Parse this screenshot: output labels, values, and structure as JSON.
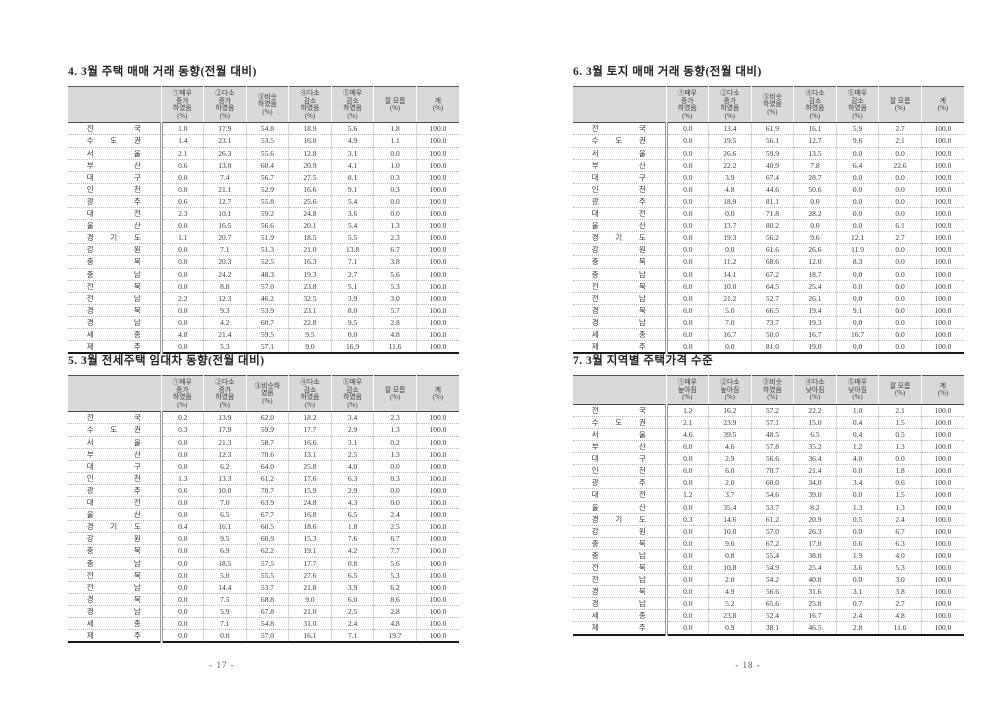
{
  "style": {
    "header_bg": "#d9d9d9",
    "paper": "#ffffff"
  },
  "document": {
    "pages": [
      {
        "number_label": "- 17 -"
      },
      {
        "number_label": "- 18 -"
      }
    ]
  },
  "regions": [
    "전 국",
    "수 도 권",
    "서 울",
    "부 산",
    "대 구",
    "인 천",
    "광 주",
    "대 전",
    "울 산",
    "경 기 도",
    "강 원",
    "충 북",
    "충 남",
    "전 북",
    "전 남",
    "경 북",
    "경 남",
    "세 종",
    "제 주"
  ],
  "tables": {
    "housing_sales": {
      "title": "4. 3월 주택 매매 거래 동향(전월 대비)",
      "col_headers": [
        [
          "①매우",
          "증가",
          "하였음",
          "(%)"
        ],
        [
          "②다소",
          "증가",
          "하였음",
          "(%)"
        ],
        [
          "③비슷",
          "하였음",
          "(%)"
        ],
        [
          "④다소",
          "감소",
          "하였음",
          "(%)"
        ],
        [
          "⑤매우",
          "감소",
          "하였음",
          "(%)"
        ],
        [
          "잘 모름",
          "(%)"
        ],
        [
          "계",
          "(%)"
        ]
      ],
      "rows": [
        [
          "1.0",
          "17.9",
          "54.8",
          "18.9",
          "5.6",
          "1.8",
          "100.0"
        ],
        [
          "1.4",
          "23.1",
          "53.5",
          "16.0",
          "4.9",
          "1.1",
          "100.0"
        ],
        [
          "2.1",
          "26.3",
          "55.6",
          "12.8",
          "3.1",
          "0.0",
          "100.0"
        ],
        [
          "0.6",
          "13.0",
          "60.4",
          "20.9",
          "4.1",
          "1.0",
          "100.0"
        ],
        [
          "0.0",
          "7.4",
          "56.7",
          "27.5",
          "8.1",
          "0.3",
          "100.0"
        ],
        [
          "0.0",
          "21.1",
          "52.9",
          "16.6",
          "9.1",
          "0.3",
          "100.0"
        ],
        [
          "0.6",
          "12.7",
          "55.8",
          "25.6",
          "5.4",
          "0.0",
          "100.0"
        ],
        [
          "2.3",
          "10.1",
          "59.2",
          "24.8",
          "3.6",
          "0.0",
          "100.0"
        ],
        [
          "0.0",
          "16.5",
          "56.6",
          "20.1",
          "5.4",
          "1.3",
          "100.0"
        ],
        [
          "1.1",
          "20.7",
          "51.9",
          "18.5",
          "5.5",
          "2.3",
          "100.0"
        ],
        [
          "0.0",
          "7.1",
          "51.3",
          "21.0",
          "13.8",
          "6.7",
          "100.0"
        ],
        [
          "0.0",
          "20.3",
          "52.5",
          "16.3",
          "7.1",
          "3.8",
          "100.0"
        ],
        [
          "0.0",
          "24.2",
          "48.3",
          "19.3",
          "2.7",
          "5.6",
          "100.0"
        ],
        [
          "0.0",
          "8.8",
          "57.0",
          "23.8",
          "5.1",
          "5.3",
          "100.0"
        ],
        [
          "2.2",
          "12.3",
          "46.2",
          "32.5",
          "3.9",
          "3.0",
          "100.0"
        ],
        [
          "0.0",
          "9.3",
          "53.9",
          "23.1",
          "8.0",
          "5.7",
          "100.0"
        ],
        [
          "0.0",
          "4.2",
          "60.7",
          "22.8",
          "9.5",
          "2.8",
          "100.0"
        ],
        [
          "4.8",
          "21.4",
          "59.5",
          "9.5",
          "0.0",
          "4.8",
          "100.0"
        ],
        [
          "0.0",
          "5.3",
          "57.1",
          "9.0",
          "16.9",
          "11.6",
          "100.0"
        ]
      ]
    },
    "jeonse_rental": {
      "title": "5. 3월 전세주택 임대차 동향(전월 대비)",
      "col_headers": [
        [
          "①매우",
          "증가",
          "하였음",
          "(%)"
        ],
        [
          "②다소",
          "증가",
          "하였음",
          "(%)"
        ],
        [
          "③비슷하",
          "였음",
          "(%)"
        ],
        [
          "④다소",
          "감소",
          "하였음",
          "(%)"
        ],
        [
          "⑤매우",
          "감소",
          "하였음",
          "(%)"
        ],
        [
          "잘 모름",
          "(%)"
        ],
        [
          "계",
          "(%)"
        ]
      ],
      "rows": [
        [
          "0.2",
          "13.9",
          "62.0",
          "18.2",
          "3.4",
          "2.3",
          "100.0"
        ],
        [
          "0.3",
          "17.9",
          "59.9",
          "17.7",
          "2.9",
          "1.3",
          "100.0"
        ],
        [
          "0.0",
          "21.3",
          "58.7",
          "16.6",
          "3.1",
          "0.2",
          "100.0"
        ],
        [
          "0.0",
          "12.3",
          "70.6",
          "13.1",
          "2.5",
          "1.3",
          "100.0"
        ],
        [
          "0.0",
          "6.2",
          "64.0",
          "25.8",
          "4.0",
          "0.0",
          "100.0"
        ],
        [
          "1.3",
          "13.3",
          "61.2",
          "17.6",
          "6.3",
          "0.3",
          "100.0"
        ],
        [
          "0.6",
          "10.0",
          "70.7",
          "15.9",
          "2.9",
          "0.0",
          "100.0"
        ],
        [
          "0.0",
          "7.0",
          "63.9",
          "24.8",
          "4.3",
          "0.0",
          "100.0"
        ],
        [
          "0.0",
          "6.5",
          "67.7",
          "16.8",
          "6.5",
          "2.4",
          "100.0"
        ],
        [
          "0.4",
          "16.1",
          "60.5",
          "18.6",
          "1.8",
          "2.5",
          "100.0"
        ],
        [
          "0.0",
          "9.5",
          "60.9",
          "15.3",
          "7.6",
          "6.7",
          "100.0"
        ],
        [
          "0.0",
          "6.9",
          "62.2",
          "19.1",
          "4.2",
          "7.7",
          "100.0"
        ],
        [
          "0.0",
          "18.5",
          "57.5",
          "17.7",
          "0.8",
          "5.6",
          "100.0"
        ],
        [
          "0.0",
          "5.0",
          "55.5",
          "27.6",
          "6.5",
          "5.3",
          "100.0"
        ],
        [
          "0.0",
          "14.4",
          "53.7",
          "21.8",
          "3.9",
          "6.2",
          "100.0"
        ],
        [
          "0.0",
          "7.5",
          "68.8",
          "9.0",
          "6.0",
          "8.6",
          "100.0"
        ],
        [
          "0.0",
          "5.9",
          "67.8",
          "21.0",
          "2.5",
          "2.8",
          "100.0"
        ],
        [
          "0.0",
          "7.1",
          "54.8",
          "31.0",
          "2.4",
          "4.8",
          "100.0"
        ],
        [
          "0.0",
          "0.0",
          "57.0",
          "16.1",
          "7.1",
          "19.7",
          "100.0"
        ]
      ]
    },
    "land_sales": {
      "title": "6. 3월 토지 매매 거래 동향(전월 대비)",
      "col_headers": [
        [
          "①매우",
          "증가",
          "하였음",
          "(%)"
        ],
        [
          "②다소",
          "증가",
          "하였음",
          "(%)"
        ],
        [
          "③비슷",
          "하였음",
          "(%)"
        ],
        [
          "④다소",
          "감소",
          "하였음",
          "(%)"
        ],
        [
          "⑤매우",
          "감소",
          "하였음",
          "(%)"
        ],
        [
          "잘 모름",
          "(%)"
        ],
        [
          "계",
          "(%)"
        ]
      ],
      "rows": [
        [
          "0.0",
          "13.4",
          "61.9",
          "16.1",
          "5.9",
          "2.7",
          "100.0"
        ],
        [
          "0.0",
          "19.5",
          "56.1",
          "12.7",
          "9.6",
          "2.1",
          "100.0"
        ],
        [
          "0.0",
          "26.6",
          "59.9",
          "13.5",
          "0.0",
          "0.0",
          "100.0"
        ],
        [
          "0.0",
          "22.2",
          "40.9",
          "7.8",
          "6.4",
          "22.6",
          "100.0"
        ],
        [
          "0.0",
          "3.9",
          "67.4",
          "28.7",
          "0.0",
          "0.0",
          "100.0"
        ],
        [
          "0.0",
          "4.8",
          "44.6",
          "50.6",
          "0.0",
          "0.0",
          "100.0"
        ],
        [
          "0.0",
          "18.9",
          "81.1",
          "0.0",
          "0.0",
          "0.0",
          "100.0"
        ],
        [
          "0.0",
          "0.0",
          "71.8",
          "28.2",
          "0.0",
          "0.0",
          "100.0"
        ],
        [
          "0.0",
          "13.7",
          "80.2",
          "0.0",
          "0.0",
          "6.1",
          "100.0"
        ],
        [
          "0.0",
          "19.3",
          "56.2",
          "9.6",
          "12.1",
          "2.7",
          "100.0"
        ],
        [
          "0.0",
          "0.0",
          "61.6",
          "26.6",
          "11.9",
          "0.0",
          "100.0"
        ],
        [
          "0.0",
          "11.2",
          "68.6",
          "12.0",
          "8.3",
          "0.0",
          "100.0"
        ],
        [
          "0.0",
          "14.1",
          "67.2",
          "18.7",
          "0.0",
          "0.0",
          "100.0"
        ],
        [
          "0.0",
          "10.0",
          "64.5",
          "25.4",
          "0.0",
          "0.0",
          "100.0"
        ],
        [
          "0.0",
          "21.2",
          "52.7",
          "26.1",
          "0.0",
          "0.0",
          "100.0"
        ],
        [
          "0.0",
          "5.0",
          "66.5",
          "19.4",
          "9.1",
          "0.0",
          "100.0"
        ],
        [
          "0.0",
          "7.0",
          "73.7",
          "19.3",
          "0.0",
          "0.0",
          "100.0"
        ],
        [
          "0.0",
          "16.7",
          "50.0",
          "16.7",
          "16.7",
          "0.0",
          "100.0"
        ],
        [
          "0.0",
          "0.0",
          "81.0",
          "19.0",
          "0.0",
          "0.0",
          "100.0"
        ]
      ]
    },
    "price_level": {
      "title": "7. 3월 지역별 주택가격 수준",
      "col_headers": [
        [
          "①매우",
          "높아짐",
          "(%)"
        ],
        [
          "②다소",
          "높아짐",
          "(%)"
        ],
        [
          "③비슷",
          "하였음",
          "(%)"
        ],
        [
          "④다소",
          "낮아짐",
          "(%)"
        ],
        [
          "⑤매우",
          "낮아짐",
          "(%)"
        ],
        [
          "잘 모름",
          "(%)"
        ],
        [
          "계",
          "(%)"
        ]
      ],
      "rows": [
        [
          "1.2",
          "16.2",
          "57.2",
          "22.2",
          "1.0",
          "2.1",
          "100.0"
        ],
        [
          "2.1",
          "23.9",
          "57.1",
          "15.0",
          "0.4",
          "1.5",
          "100.0"
        ],
        [
          "4.6",
          "39.5",
          "48.5",
          "6.5",
          "0.4",
          "0.5",
          "100.0"
        ],
        [
          "0.0",
          "4.6",
          "57.8",
          "35.2",
          "1.2",
          "1.3",
          "100.0"
        ],
        [
          "0.0",
          "2.9",
          "56.6",
          "36.4",
          "4.0",
          "0.0",
          "100.0"
        ],
        [
          "0.0",
          "6.0",
          "70.7",
          "21.4",
          "0.0",
          "1.8",
          "100.0"
        ],
        [
          "0.0",
          "2.0",
          "60.0",
          "34.0",
          "3.4",
          "0.6",
          "100.0"
        ],
        [
          "1.2",
          "3.7",
          "54.6",
          "39.0",
          "0.0",
          "1.5",
          "100.0"
        ],
        [
          "0.0",
          "35.4",
          "53.7",
          "8.2",
          "1.3",
          "1.3",
          "100.0"
        ],
        [
          "0.3",
          "14.6",
          "61.2",
          "20.9",
          "0.5",
          "2.4",
          "100.0"
        ],
        [
          "0.0",
          "10.0",
          "57.0",
          "26.3",
          "0.0",
          "6.7",
          "100.0"
        ],
        [
          "0.0",
          "9.0",
          "67.2",
          "17.0",
          "0.6",
          "6.3",
          "100.0"
        ],
        [
          "0.0",
          "0.8",
          "55.4",
          "38.0",
          "1.9",
          "4.0",
          "100.0"
        ],
        [
          "0.0",
          "10.8",
          "54.9",
          "25.4",
          "3.6",
          "5.3",
          "100.0"
        ],
        [
          "0.0",
          "2.0",
          "54.2",
          "40.8",
          "0.0",
          "3.0",
          "100.0"
        ],
        [
          "0.0",
          "4.9",
          "56.6",
          "31.6",
          "3.1",
          "3.8",
          "100.0"
        ],
        [
          "0.0",
          "5.2",
          "65.6",
          "25.8",
          "0.7",
          "2.7",
          "100.0"
        ],
        [
          "0.0",
          "23.8",
          "52.4",
          "16.7",
          "2.4",
          "4.8",
          "100.0"
        ],
        [
          "0.0",
          "0.9",
          "38.1",
          "46.5",
          "2.8",
          "11.6",
          "100.0"
        ]
      ]
    }
  }
}
